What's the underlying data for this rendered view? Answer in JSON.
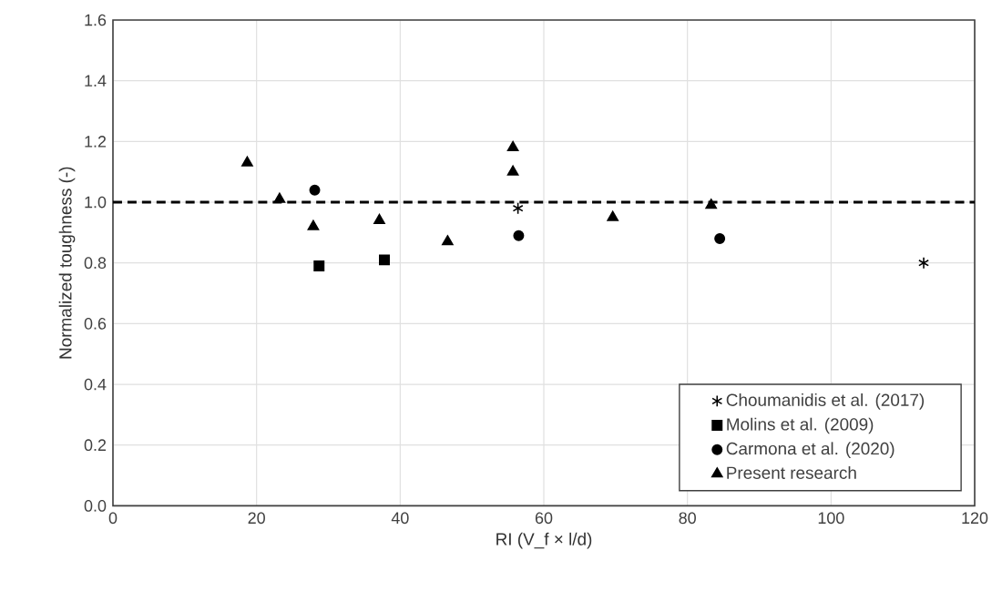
{
  "chart_data": {
    "type": "scatter",
    "xlabel": "RI (V_f × l/d)",
    "ylabel": "Normalized toughness (-)",
    "series": [
      {
        "name": "Choumanidis et al. (2017)",
        "color": "#000000",
        "marker": "cross",
        "x": [
          56.4,
          112.9
        ],
        "values": [
          0.98,
          0.8
        ]
      },
      {
        "name": "Molins et al. (2009)",
        "color": "#000000",
        "marker": "square",
        "x": [
          28.7,
          37.8
        ],
        "values": [
          0.79,
          0.81
        ]
      },
      {
        "name": "Carmona et al. (2020)",
        "color": "#000000",
        "marker": "circle",
        "x": [
          28.1,
          56.5,
          84.5
        ],
        "values": [
          1.04,
          0.89,
          0.88
        ]
      },
      {
        "name": "Present research",
        "color": "#000000",
        "marker": "triangle",
        "x": [
          18.7,
          23.2,
          27.9,
          37.1,
          46.6,
          55.7,
          55.7,
          69.6,
          83.3
        ],
        "values": [
          1.13,
          1.01,
          0.92,
          0.94,
          0.87,
          1.18,
          1.1,
          0.95,
          0.99
        ]
      }
    ],
    "xlim": [
      0,
      120
    ],
    "xticks": [
      0,
      20,
      40,
      60,
      80,
      100,
      120
    ],
    "ylim": [
      0,
      1.6
    ],
    "yticks": [
      {
        "value": 0,
        "label": "0.0"
      },
      {
        "value": 0.2,
        "label": "0.2"
      },
      {
        "value": 0.4,
        "label": "0.4"
      },
      {
        "value": 0.6,
        "label": "0.6"
      },
      {
        "value": 0.8,
        "label": "0.8"
      },
      {
        "value": 1.0,
        "label": "1.0"
      },
      {
        "value": 1.2,
        "label": "1.2"
      },
      {
        "value": 1.4,
        "label": "1.4"
      },
      {
        "value": 1.6,
        "label": "1.6"
      }
    ],
    "ref_lines": [
      {
        "axis": "y",
        "value": 1.0,
        "color": "#000000",
        "line_style": "dashed"
      }
    ],
    "grid": true,
    "legend": "bottom right"
  }
}
